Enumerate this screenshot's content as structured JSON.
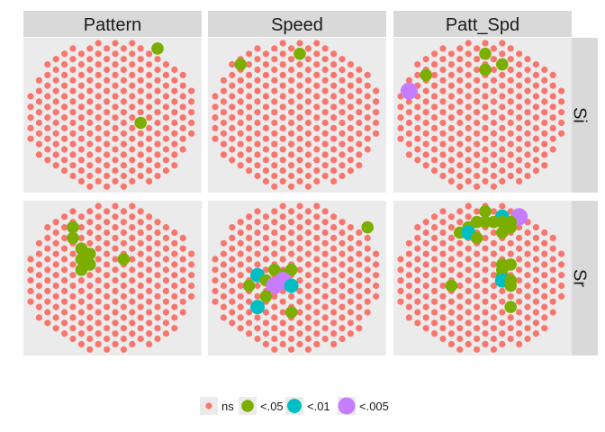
{
  "chart_data": {
    "type": "scatter",
    "columns": [
      "Pattern",
      "Speed",
      "Patt_Spd"
    ],
    "rows": [
      "Si",
      "Sr"
    ],
    "legend": {
      "placement": "bottom",
      "entries": [
        {
          "key": "ns",
          "label": "ns",
          "color": "#F8766D"
        },
        {
          "key": "p05",
          "label": "<.05",
          "color": "#7CAE00"
        },
        {
          "key": "p01",
          "label": "<.01",
          "color": "#00BFC4"
        },
        {
          "key": "p005",
          "label": "<.005",
          "color": "#C77CFF"
        }
      ]
    },
    "electrode_layout": [
      [
        1,
        4
      ],
      [
        2,
        3
      ],
      [
        3,
        6
      ],
      [
        4,
        5
      ],
      [
        5,
        8
      ],
      [
        6,
        7
      ],
      [
        7,
        10
      ],
      [
        8,
        9
      ],
      [
        9,
        10
      ],
      [
        10,
        11
      ],
      [
        11,
        10
      ],
      [
        12,
        9
      ],
      [
        13,
        10
      ],
      [
        14,
        7
      ],
      [
        15,
        8
      ],
      [
        16,
        5
      ],
      [
        17,
        6
      ],
      [
        18,
        3
      ],
      [
        19,
        4
      ],
      [
        1,
        12
      ],
      [
        2,
        13
      ],
      [
        3,
        14
      ],
      [
        4,
        15
      ],
      [
        5,
        16
      ],
      [
        6,
        17
      ],
      [
        7,
        18
      ],
      [
        8,
        18
      ],
      [
        9,
        18
      ],
      [
        10,
        19
      ],
      [
        11,
        18
      ],
      [
        12,
        18
      ],
      [
        13,
        18
      ],
      [
        14,
        17
      ],
      [
        15,
        16
      ],
      [
        16,
        15
      ],
      [
        17,
        14
      ],
      [
        18,
        13
      ],
      [
        19,
        12
      ],
      [
        3,
        22
      ],
      [
        4,
        23
      ],
      [
        5,
        24
      ],
      [
        6,
        25
      ],
      [
        7,
        26
      ],
      [
        8,
        26
      ],
      [
        9,
        27
      ],
      [
        10,
        27
      ],
      [
        11,
        27
      ],
      [
        12,
        26
      ],
      [
        13,
        26
      ],
      [
        14,
        25
      ],
      [
        15,
        24
      ],
      [
        16,
        23
      ],
      [
        17,
        22
      ]
    ],
    "panels": [
      {
        "column": "Pattern",
        "row": "Si",
        "significant": [
          {
            "x": 15,
            "y": 1,
            "level": "p05"
          },
          {
            "x": 13,
            "y": 15,
            "level": "p05"
          }
        ]
      },
      {
        "column": "Speed",
        "row": "Si",
        "significant": [
          {
            "x": 3,
            "y": 4,
            "level": "p05"
          },
          {
            "x": 10,
            "y": 2,
            "level": "p05"
          }
        ]
      },
      {
        "column": "Patt_Spd",
        "row": "Si",
        "significant": [
          {
            "x": 10,
            "y": 2,
            "level": "p05"
          },
          {
            "x": 12,
            "y": 4,
            "level": "p05"
          },
          {
            "x": 10,
            "y": 5,
            "level": "p05"
          },
          {
            "x": 3,
            "y": 6,
            "level": "p05"
          },
          {
            "x": 1,
            "y": 9,
            "level": "p005"
          }
        ]
      },
      {
        "column": "Pattern",
        "row": "Sr",
        "significant": [
          {
            "x": 5,
            "y": 4,
            "level": "p05"
          },
          {
            "x": 5,
            "y": 6,
            "level": "p05"
          },
          {
            "x": 6,
            "y": 8,
            "level": "p05"
          },
          {
            "x": 7,
            "y": 9,
            "level": "p05"
          },
          {
            "x": 6,
            "y": 10,
            "level": "p05"
          },
          {
            "x": 7,
            "y": 11,
            "level": "p05"
          },
          {
            "x": 6,
            "y": 12,
            "level": "p05"
          },
          {
            "x": 11,
            "y": 10,
            "level": "p05"
          }
        ]
      },
      {
        "column": "Speed",
        "row": "Sr",
        "significant": [
          {
            "x": 18,
            "y": 4,
            "level": "p05"
          },
          {
            "x": 7,
            "y": 12,
            "level": "p05"
          },
          {
            "x": 9,
            "y": 12,
            "level": "p05"
          },
          {
            "x": 8,
            "y": 13,
            "level": "p05"
          },
          {
            "x": 5,
            "y": 13,
            "level": "p01"
          },
          {
            "x": 6,
            "y": 14,
            "level": "p05"
          },
          {
            "x": 7,
            "y": 15,
            "level": "p005"
          },
          {
            "x": 8,
            "y": 14,
            "level": "p005"
          },
          {
            "x": 9,
            "y": 15,
            "level": "p01"
          },
          {
            "x": 4,
            "y": 15,
            "level": "p05"
          },
          {
            "x": 6,
            "y": 17,
            "level": "p05"
          },
          {
            "x": 5,
            "y": 19,
            "level": "p01"
          },
          {
            "x": 9,
            "y": 20,
            "level": "p05"
          }
        ]
      },
      {
        "column": "Patt_Spd",
        "row": "Sr",
        "significant": [
          {
            "x": 10,
            "y": 1,
            "level": "p05"
          },
          {
            "x": 12,
            "y": 2,
            "level": "p01"
          },
          {
            "x": 14,
            "y": 2,
            "level": "p005"
          },
          {
            "x": 9,
            "y": 3,
            "level": "p05"
          },
          {
            "x": 10,
            "y": 3,
            "level": "p05"
          },
          {
            "x": 11,
            "y": 3,
            "level": "p05"
          },
          {
            "x": 12,
            "y": 3,
            "level": "p05"
          },
          {
            "x": 13,
            "y": 3,
            "level": "p05"
          },
          {
            "x": 8,
            "y": 4,
            "level": "p05"
          },
          {
            "x": 13,
            "y": 4,
            "level": "p05"
          },
          {
            "x": 7,
            "y": 5,
            "level": "p05"
          },
          {
            "x": 8,
            "y": 5,
            "level": "p01"
          },
          {
            "x": 12,
            "y": 5,
            "level": "p05"
          },
          {
            "x": 9,
            "y": 6,
            "level": "p05"
          },
          {
            "x": 12,
            "y": 11,
            "level": "p05"
          },
          {
            "x": 13,
            "y": 11,
            "level": "p05"
          },
          {
            "x": 12,
            "y": 12,
            "level": "p05"
          },
          {
            "x": 12,
            "y": 13,
            "level": "p05"
          },
          {
            "x": 12,
            "y": 14,
            "level": "p01"
          },
          {
            "x": 13,
            "y": 14,
            "level": "p05"
          },
          {
            "x": 6,
            "y": 15,
            "level": "p05"
          },
          {
            "x": 13,
            "y": 15,
            "level": "p05"
          },
          {
            "x": 13,
            "y": 19,
            "level": "p05"
          }
        ]
      }
    ]
  }
}
